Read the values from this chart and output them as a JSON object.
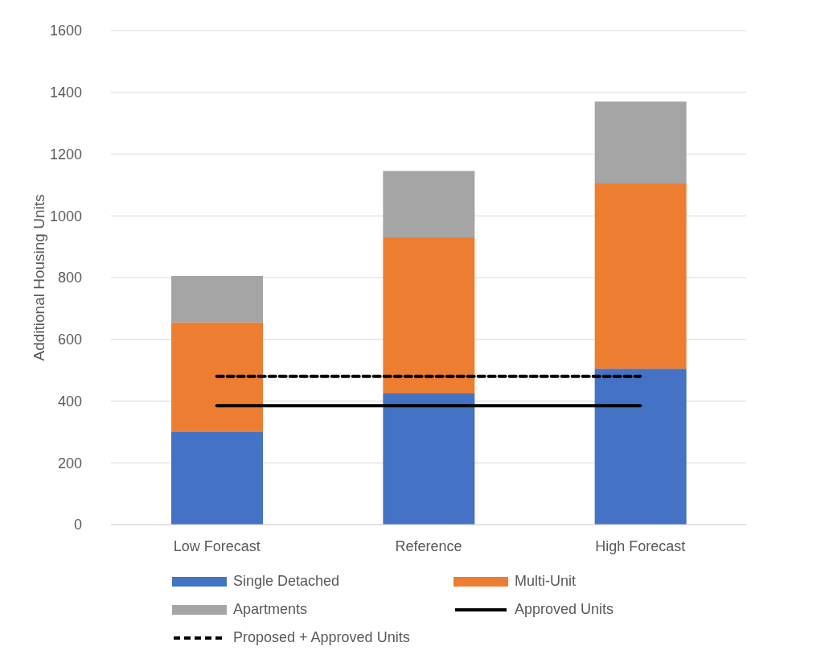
{
  "chart_data": {
    "type": "bar",
    "stacked": true,
    "ylabel": "Additional Housing Units",
    "categories": [
      "Low Forecast",
      "Reference",
      "High Forecast"
    ],
    "series": [
      {
        "name": "Single Detached",
        "color": "#4472c4",
        "values": [
          300,
          425,
          505
        ]
      },
      {
        "name": "Multi-Unit",
        "color": "#ed7d31",
        "values": [
          355,
          505,
          600
        ]
      },
      {
        "name": "Apartments",
        "color": "#a5a5a5",
        "values": [
          150,
          215,
          265
        ]
      },
      {
        "name": "Approved Units",
        "type": "line",
        "color": "#000000",
        "line_style": "solid",
        "values": [
          385,
          385,
          385
        ]
      },
      {
        "name": "Proposed + Approved Units",
        "type": "line",
        "color": "#000000",
        "line_style": "dashed",
        "values": [
          480,
          480,
          480
        ]
      }
    ],
    "ylim": [
      0,
      1600
    ],
    "yticks": [
      0,
      200,
      400,
      600,
      800,
      1000,
      1200,
      1400,
      1600
    ],
    "grid": "y",
    "legend": "bottom",
    "marker": "none"
  }
}
